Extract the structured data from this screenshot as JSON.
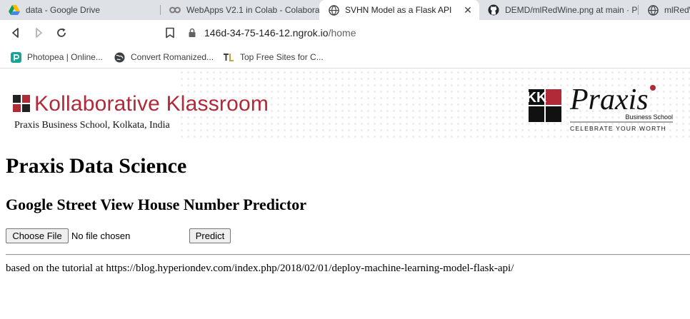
{
  "tabs": [
    {
      "label": "data - Google Drive",
      "icon": "google-drive-icon",
      "active": false
    },
    {
      "label": "WebApps V2.1 in Colab - Colaborat",
      "icon": "colab-icon",
      "active": false
    },
    {
      "label": "SVHN Model as a Flask API",
      "icon": "globe-icon",
      "active": true
    },
    {
      "label": "DEMD/mlRedWine.png at main · P",
      "icon": "github-icon",
      "active": false
    },
    {
      "label": "mlRedW",
      "icon": "globe-icon",
      "active": false
    }
  ],
  "toolbar": {
    "url_host": "146d-34-75-146-12.ngrok.io",
    "url_path": "/home"
  },
  "bookmarks": [
    {
      "label": "Photopea | Online...",
      "icon": "photopea-icon"
    },
    {
      "label": "Convert Romanized...",
      "icon": "globe-icon"
    },
    {
      "label": "Top Free Sites for C...",
      "icon": "tl-icon"
    }
  ],
  "banner": {
    "title": "Kollaborative Klassroom",
    "subtitle": "Praxis Business School, Kolkata, India",
    "logo_letters": "KK",
    "praxis_name": "Praxis",
    "praxis_tag": "Business School",
    "praxis_motto": "CELEBRATE YOUR WORTH"
  },
  "page": {
    "heading": "Praxis Data Science",
    "subheading": "Google Street View House Number Predictor",
    "choose_file_label": "Choose File",
    "file_status": "No file chosen",
    "predict_label": "Predict",
    "footer_note": "based on the tutorial at https://blog.hyperiondev.com/index.php/2018/02/01/deploy-machine-learning-model-flask-api/"
  },
  "colors": {
    "brand_red": "#b02a37",
    "tab_strip": "#dee1e6"
  }
}
